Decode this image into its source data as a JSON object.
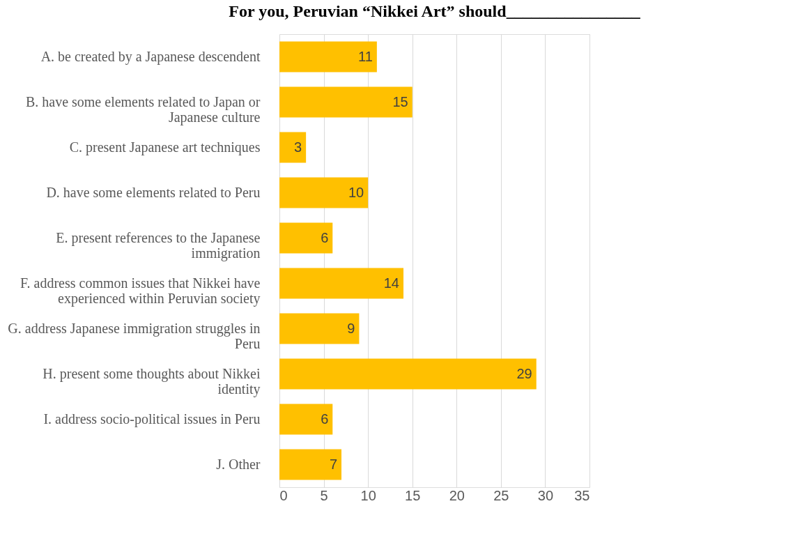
{
  "chart_data": {
    "type": "bar",
    "orientation": "horizontal",
    "title": "For you, Peruvian “Nikkei Art” should________________",
    "categories": [
      "A. be created by a Japanese descendent",
      "B. have some elements related to Japan or Japanese culture",
      "C. present Japanese art techniques",
      "D. have some elements related to Peru",
      "E. present references to the Japanese immigration",
      "F. address common issues that Nikkei have experienced within Peruvian society",
      "G. address Japanese immigration struggles in Peru",
      "H. present some thoughts about Nikkei identity",
      "I. address socio-political issues in Peru",
      "J. Other"
    ],
    "values": [
      11,
      15,
      3,
      10,
      6,
      14,
      9,
      29,
      6,
      7
    ],
    "color": "#ffc000",
    "xlim": [
      0,
      35
    ],
    "xticks": [
      0,
      5,
      10,
      15,
      20,
      25,
      30,
      35
    ],
    "grid": "x",
    "data_labels": true
  }
}
